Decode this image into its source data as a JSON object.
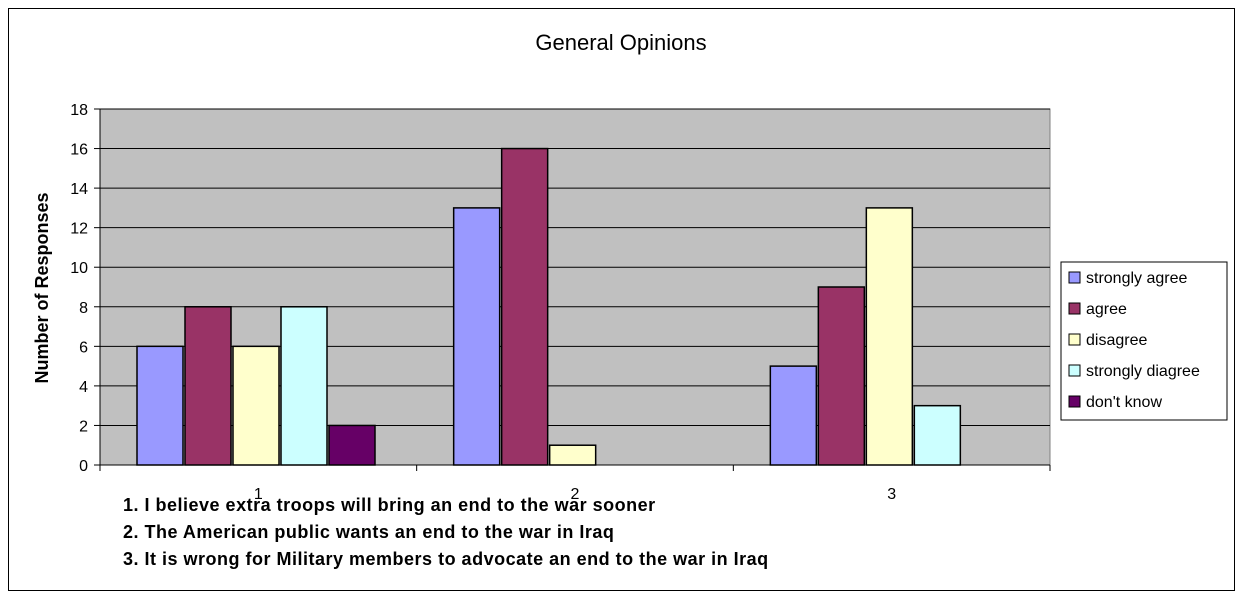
{
  "chart_data": {
    "type": "bar",
    "title": "General Opinions",
    "xlabel": "",
    "ylabel": "Number of Responses",
    "categories": [
      "1",
      "2",
      "3"
    ],
    "ylim": [
      0,
      18
    ],
    "yticks": [
      0,
      2,
      4,
      6,
      8,
      10,
      12,
      14,
      16,
      18
    ],
    "grid": true,
    "legend_position": "right",
    "plot_background": "#c0c0c0",
    "series": [
      {
        "name": "strongly agree",
        "color": "#9999ff",
        "values": [
          6,
          13,
          5
        ]
      },
      {
        "name": "agree",
        "color": "#993366",
        "values": [
          8,
          16,
          9
        ]
      },
      {
        "name": "disagree",
        "color": "#ffffcc",
        "values": [
          6,
          1,
          13
        ]
      },
      {
        "name": "strongly diagree",
        "color": "#ccffff",
        "values": [
          8,
          null,
          3
        ]
      },
      {
        "name": "don't know",
        "color": "#660066",
        "values": [
          2,
          null,
          null
        ]
      }
    ],
    "annotations": [
      "1. I believe extra troops will bring an end to the war sooner",
      "2. The American public wants an end to the war in Iraq",
      "3. It is wrong for Military members to advocate an end to the war in Iraq"
    ]
  }
}
